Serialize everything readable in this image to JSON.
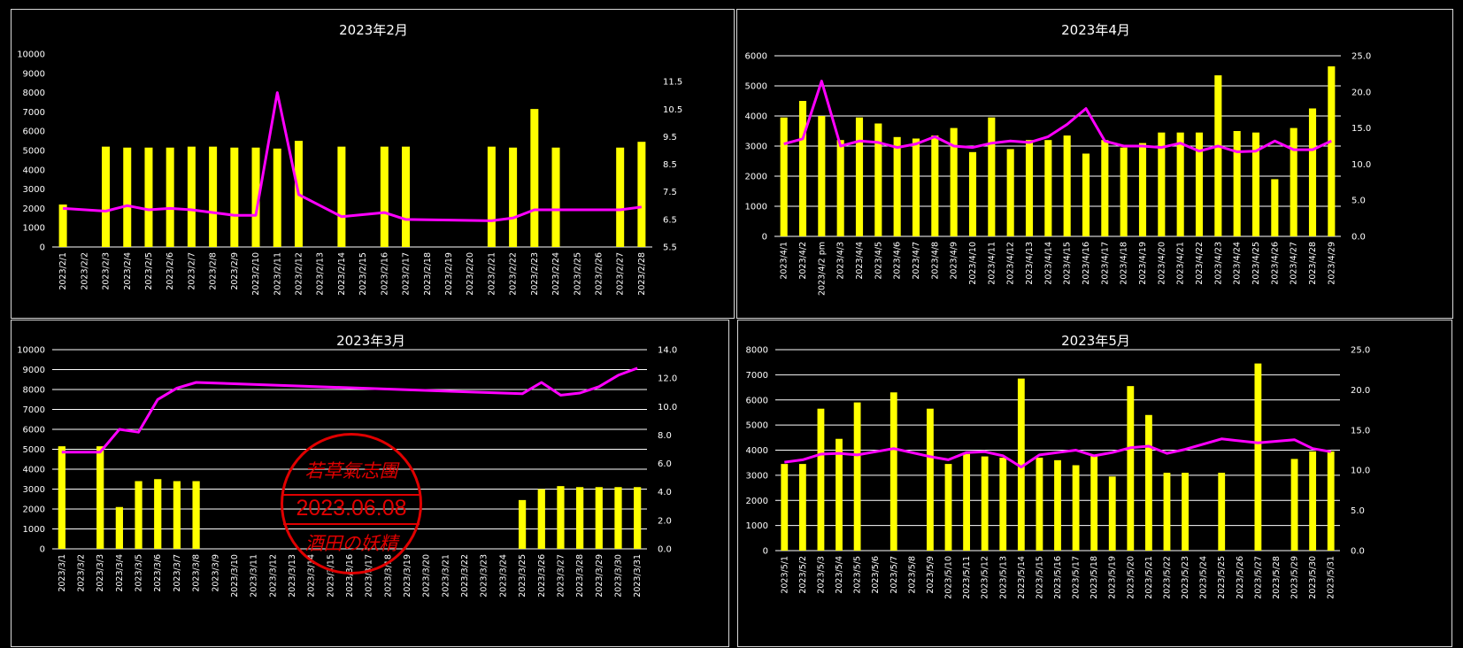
{
  "colors": {
    "bar": "#ffff00",
    "line": "#ff00ff",
    "grid": "#ffffff",
    "stamp": "#e00000"
  },
  "stamp": {
    "top": "若草氣志團",
    "date": "2023.06.08",
    "bottom": "酒田の妖精"
  },
  "chart_data": [
    {
      "id": "feb",
      "type": "bar+line",
      "title": "2023年2月",
      "categories": [
        "2023/2/1",
        "2023/2/2",
        "2023/2/3",
        "2023/2/4",
        "2023/2/5",
        "2023/2/6",
        "2023/2/7",
        "2023/2/8",
        "2023/2/9",
        "2023/2/10",
        "2023/2/11",
        "2023/2/12",
        "2023/2/13",
        "2023/2/14",
        "2023/2/15",
        "2023/2/16",
        "2023/2/17",
        "2023/2/18",
        "2023/2/19",
        "2023/2/20",
        "2023/2/21",
        "2023/2/22",
        "2023/2/23",
        "2023/2/24",
        "2023/2/25",
        "2023/2/26",
        "2023/2/27",
        "2023/2/28"
      ],
      "bars": [
        2200,
        null,
        5200,
        5150,
        5150,
        5150,
        5200,
        5200,
        5150,
        5150,
        5100,
        5500,
        null,
        5200,
        null,
        5200,
        5200,
        null,
        null,
        null,
        5200,
        5150,
        7150,
        5150,
        null,
        null,
        5150,
        5450
      ],
      "line": [
        6.9,
        null,
        6.8,
        7.0,
        6.85,
        6.9,
        6.85,
        6.75,
        6.65,
        6.65,
        11.1,
        7.4,
        null,
        6.6,
        null,
        6.75,
        6.5,
        null,
        null,
        null,
        6.45,
        6.55,
        6.85,
        6.85,
        null,
        null,
        6.85,
        6.95
      ],
      "y_left": {
        "min": 0,
        "max": 10000,
        "ticks": [
          "0",
          "1000",
          "2000",
          "3000",
          "4000",
          "5000",
          "6000",
          "7000",
          "8000",
          "9000",
          "10000"
        ]
      },
      "y_right": {
        "min": 5.5,
        "max": 12.5,
        "ticks": [
          "5.5",
          "6.5",
          "7.5",
          "8.5",
          "9.5",
          "10.5",
          "11.5"
        ]
      },
      "grid": false
    },
    {
      "id": "apr",
      "type": "bar+line",
      "title": "2023年4月",
      "categories": [
        "2023/4/1",
        "2023/4/2",
        "2023/4/2 pm",
        "2023/4/3",
        "2023/4/4",
        "2023/4/5",
        "2023/4/6",
        "2023/4/7",
        "2023/4/8",
        "2023/4/9",
        "2023/4/10",
        "2023/4/11",
        "2023/4/12",
        "2023/4/13",
        "2023/4/14",
        "2023/4/15",
        "2023/4/16",
        "2023/4/17",
        "2023/4/18",
        "2023/4/19",
        "2023/4/20",
        "2023/4/21",
        "2023/4/22",
        "2023/4/23",
        "2023/4/24",
        "2023/4/25",
        "2023/4/26",
        "2023/4/27",
        "2023/4/28",
        "2023/4/29"
      ],
      "bars": [
        3950,
        4500,
        4000,
        3200,
        3950,
        3750,
        3300,
        3250,
        3350,
        3600,
        2800,
        3950,
        2900,
        3200,
        3200,
        3350,
        2750,
        3200,
        2950,
        3100,
        3450,
        3450,
        3450,
        5350,
        3500,
        3450,
        1900,
        3600,
        4250,
        5650
      ],
      "line": [
        12.8,
        13.5,
        21.5,
        12.5,
        13.2,
        13.0,
        12.3,
        12.8,
        13.8,
        12.5,
        12.3,
        12.9,
        13.2,
        13.0,
        13.8,
        15.5,
        17.7,
        13.2,
        12.5,
        12.5,
        12.3,
        12.9,
        11.8,
        12.5,
        11.7,
        11.8,
        13.2,
        12.0,
        12.0,
        13.2
      ],
      "y_left": {
        "min": 0,
        "max": 6000,
        "ticks": [
          "0",
          "1000",
          "2000",
          "3000",
          "4000",
          "5000",
          "6000"
        ]
      },
      "y_right": {
        "min": 0,
        "max": 25,
        "ticks": [
          "0.0",
          "5.0",
          "10.0",
          "15.0",
          "20.0",
          "25.0"
        ]
      },
      "grid": true
    },
    {
      "id": "mar",
      "type": "bar+line",
      "title": "2023年3月",
      "categories": [
        "2023/3/1",
        "2023/3/2",
        "2023/3/3",
        "2023/3/4",
        "2023/3/5",
        "2023/3/6",
        "2023/3/7",
        "2023/3/8",
        "2023/3/9",
        "2023/3/10",
        "2023/3/11",
        "2023/3/12",
        "2023/3/13",
        "2023/3/14",
        "2023/3/15",
        "2023/3/16",
        "2023/3/17",
        "2023/3/18",
        "2023/3/19",
        "2023/3/20",
        "2023/3/21",
        "2023/3/22",
        "2023/3/23",
        "2023/3/24",
        "2023/3/25",
        "2023/3/26",
        "2023/3/27",
        "2023/3/28",
        "2023/3/29",
        "2023/3/30",
        "2023/3/31"
      ],
      "bars": [
        5150,
        null,
        5150,
        2100,
        3400,
        3500,
        3400,
        3400,
        null,
        null,
        null,
        null,
        null,
        null,
        null,
        null,
        null,
        null,
        null,
        null,
        null,
        null,
        null,
        null,
        2450,
        3000,
        3150,
        3100,
        3100,
        3100,
        3100
      ],
      "line": [
        6.8,
        null,
        6.8,
        8.4,
        8.2,
        10.5,
        11.3,
        11.7,
        null,
        null,
        null,
        null,
        null,
        null,
        null,
        null,
        null,
        null,
        null,
        null,
        null,
        null,
        null,
        null,
        10.9,
        11.7,
        10.8,
        10.95,
        11.4,
        12.2,
        12.7
      ],
      "y_left": {
        "min": 0,
        "max": 10000,
        "ticks": [
          "0",
          "1000",
          "2000",
          "3000",
          "4000",
          "5000",
          "6000",
          "7000",
          "8000",
          "9000",
          "10000"
        ]
      },
      "y_right": {
        "min": 0,
        "max": 14,
        "ticks": [
          "0.0",
          "2.0",
          "4.0",
          "6.0",
          "8.0",
          "10.0",
          "12.0",
          "14.0"
        ]
      },
      "grid": true
    },
    {
      "id": "may",
      "type": "bar+line",
      "title": "2023年5月",
      "categories": [
        "2023/5/1",
        "2023/5/2",
        "2023/5/3",
        "2023/5/4",
        "2023/5/5",
        "2023/5/6",
        "2023/5/7",
        "2023/5/8",
        "2023/5/9",
        "2023/5/10",
        "2023/5/11",
        "2023/5/12",
        "2023/5/13",
        "2023/5/14",
        "2023/5/15",
        "2023/5/16",
        "2023/5/17",
        "2023/5/18",
        "2023/5/19",
        "2023/5/20",
        "2023/5/21",
        "2023/5/22",
        "2023/5/23",
        "2023/5/24",
        "2023/5/25",
        "2023/5/26",
        "2023/5/27",
        "2023/5/28",
        "2023/5/29",
        "2023/5/30",
        "2023/5/31"
      ],
      "bars": [
        3450,
        3450,
        5650,
        4450,
        5900,
        null,
        6300,
        null,
        5650,
        3450,
        3850,
        3750,
        3700,
        6850,
        3700,
        3600,
        3400,
        3800,
        2950,
        6550,
        5400,
        3100,
        3100,
        null,
        3100,
        null,
        7450,
        null,
        3650,
        3950,
        3950
      ],
      "line": [
        11.0,
        11.3,
        12.0,
        12.1,
        11.9,
        null,
        12.7,
        null,
        11.7,
        11.3,
        12.2,
        12.3,
        11.8,
        10.4,
        11.9,
        12.2,
        12.5,
        11.8,
        12.2,
        12.8,
        13.0,
        12.1,
        12.6,
        null,
        13.9,
        null,
        13.4,
        null,
        13.8,
        12.7,
        12.3
      ],
      "y_left": {
        "min": 0,
        "max": 8000,
        "ticks": [
          "0",
          "1000",
          "2000",
          "3000",
          "4000",
          "5000",
          "6000",
          "7000",
          "8000"
        ]
      },
      "y_right": {
        "min": 0,
        "max": 25,
        "ticks": [
          "0.0",
          "5.0",
          "10.0",
          "15.0",
          "20.0",
          "25.0"
        ]
      },
      "grid": true
    }
  ]
}
